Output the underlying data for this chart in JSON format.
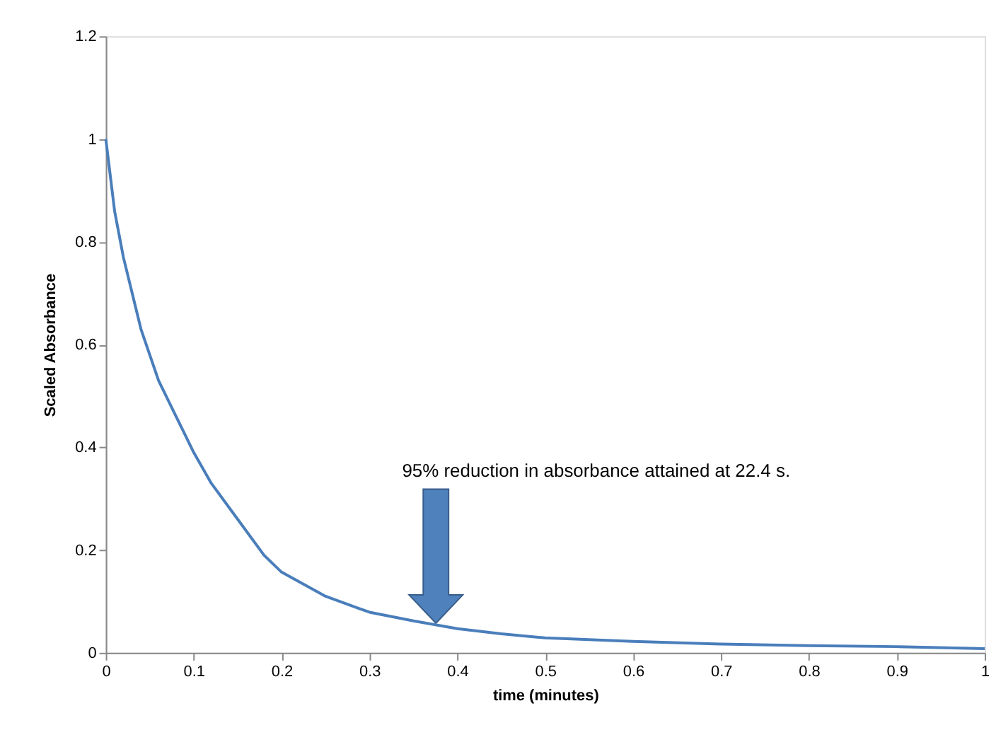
{
  "chart_data": {
    "type": "line",
    "xlabel": "time (minutes)",
    "ylabel": "Scaled Absorbance",
    "x": [
      0,
      0.01,
      0.02,
      0.03,
      0.04,
      0.05,
      0.06,
      0.08,
      0.1,
      0.12,
      0.15,
      0.18,
      0.2,
      0.25,
      0.3,
      0.35,
      0.4,
      0.45,
      0.5,
      0.6,
      0.7,
      0.8,
      0.9,
      1.0
    ],
    "series": [
      {
        "color": "#4a7ebb",
        "values": [
          1,
          0.86,
          0.77,
          0.7,
          0.63,
          0.58,
          0.53,
          0.46,
          0.39,
          0.33,
          0.26,
          0.19,
          0.157,
          0.11,
          0.079,
          0.062,
          0.047,
          0.037,
          0.029,
          0.022,
          0.017,
          0.014,
          0.012,
          0.008
        ]
      }
    ],
    "xlim": [
      0,
      1
    ],
    "xticks": [
      0,
      0.1,
      0.2,
      0.3,
      0.4,
      0.5,
      0.6,
      0.7,
      0.8,
      0.9,
      1
    ],
    "ylim": [
      0,
      1.2
    ],
    "yticks": [
      0,
      0.2,
      0.4,
      0.6,
      0.8,
      1,
      1.2
    ],
    "grid": false,
    "legend": false,
    "marker": "none",
    "line_style": "solid",
    "annotations": [
      "95% reduction in absorbance attained at 22.4 s."
    ]
  }
}
